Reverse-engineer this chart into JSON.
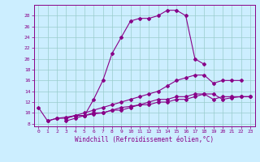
{
  "background_color": "#cceeff",
  "line_color": "#880088",
  "grid_color": "#99cccc",
  "xlabel": "Windchill (Refroidissement éolien,°C)",
  "xlim": [
    -0.5,
    23.5
  ],
  "ylim": [
    7.5,
    30
  ],
  "yticks": [
    8,
    10,
    12,
    14,
    16,
    18,
    20,
    22,
    24,
    26,
    28
  ],
  "xticks": [
    0,
    1,
    2,
    3,
    4,
    5,
    6,
    7,
    8,
    9,
    10,
    11,
    12,
    13,
    14,
    15,
    16,
    17,
    18,
    19,
    20,
    21,
    22,
    23
  ],
  "series": [
    {
      "x": [
        0,
        1,
        2,
        3,
        4,
        5,
        6,
        7,
        8,
        9,
        10,
        11,
        12,
        13,
        14,
        15,
        16,
        17,
        18
      ],
      "y": [
        11,
        8.5,
        9,
        9,
        9.5,
        9.5,
        12.5,
        16,
        21,
        24,
        27,
        27.5,
        27.5,
        28,
        29,
        29,
        28,
        20,
        19
      ]
    },
    {
      "x": [
        3,
        4,
        5,
        6,
        7,
        8,
        9,
        10,
        11,
        12,
        13,
        14,
        15,
        16,
        17,
        18,
        19,
        20,
        21,
        22
      ],
      "y": [
        9,
        9.5,
        10,
        10.5,
        11,
        11.5,
        12,
        12.5,
        13,
        13.5,
        14,
        15,
        16,
        16.5,
        17,
        17,
        15.5,
        16,
        16,
        16
      ]
    },
    {
      "x": [
        3,
        4,
        5,
        6,
        7,
        8,
        9,
        10,
        11,
        12,
        13,
        14,
        15,
        16,
        17,
        18,
        19,
        20,
        21,
        22,
        23
      ],
      "y": [
        8.5,
        9,
        9.5,
        9.8,
        10,
        10.5,
        11,
        11.2,
        11.5,
        12,
        12.5,
        12.5,
        13,
        13,
        13.5,
        13.5,
        12.5,
        13,
        13,
        13,
        13
      ]
    },
    {
      "x": [
        1,
        2,
        3,
        4,
        5,
        6,
        7,
        8,
        9,
        10,
        11,
        12,
        13,
        14,
        15,
        16,
        17,
        18,
        19,
        20,
        21,
        22,
        23
      ],
      "y": [
        8.5,
        9,
        9.2,
        9.5,
        9.5,
        10,
        10,
        10.5,
        10.5,
        11,
        11.5,
        11.5,
        12,
        12,
        12.5,
        12.5,
        13,
        13.5,
        13.5,
        12.5,
        12.8,
        13,
        13
      ]
    }
  ]
}
